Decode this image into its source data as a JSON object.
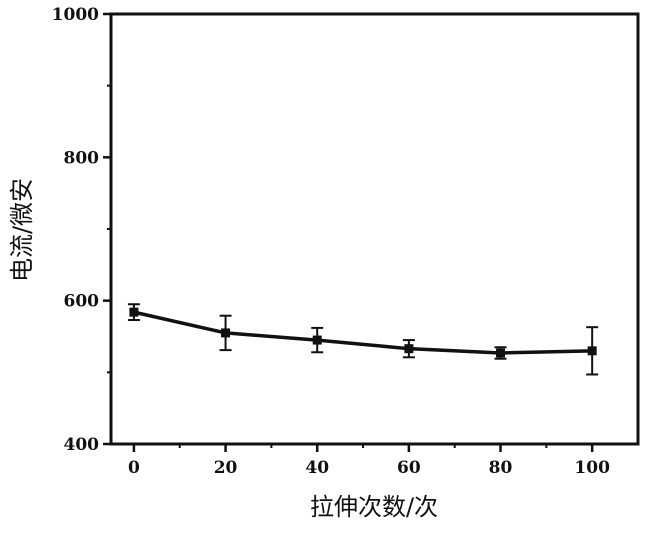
{
  "chart_data": {
    "type": "line",
    "title": "",
    "xlabel": "拉伸次数/次",
    "ylabel": "电流/微安",
    "xlim": [
      -5,
      110
    ],
    "ylim": [
      400,
      1000
    ],
    "xticks": [
      "0",
      "20",
      "40",
      "60",
      "80",
      "100"
    ],
    "yticks": [
      "400",
      "600",
      "800",
      "1000"
    ],
    "grid": false,
    "legend": "none",
    "series": [
      {
        "x": [
          0,
          20,
          40,
          60,
          80,
          100
        ],
        "y": [
          584,
          555,
          545,
          533,
          527,
          530
        ],
        "error": [
          11,
          24,
          17,
          12,
          8,
          33
        ],
        "color": "#111111"
      }
    ]
  }
}
